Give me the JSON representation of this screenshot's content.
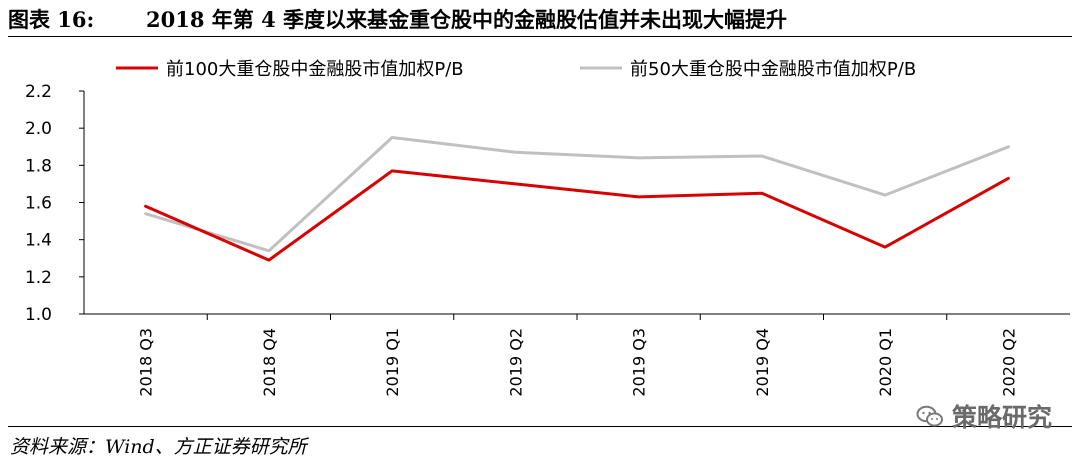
{
  "figure": {
    "label": "图表 16:",
    "title": "2018 年第 4 季度以来基金重仓股中的金融股估值并未出现大幅提升"
  },
  "source": "资料来源：Wind、方正证券研究所",
  "watermark": "策略研究",
  "watermark_icon": "wechat-icon",
  "chart_data": {
    "type": "line",
    "categories": [
      "2018  Q3",
      "2018  Q4",
      "2019  Q1",
      "2019  Q2",
      "2019  Q3",
      "2019  Q4",
      "2020  Q1",
      "2020  Q2"
    ],
    "series": [
      {
        "name": "前100大重仓股中金融股市值加权P/B",
        "color": "#d90000",
        "values": [
          1.58,
          1.29,
          1.77,
          1.7,
          1.63,
          1.65,
          1.36,
          1.73
        ]
      },
      {
        "name": "前50大重仓股中金融股市值加权P/B",
        "color": "#c0c0c0",
        "values": [
          1.54,
          1.34,
          1.95,
          1.87,
          1.84,
          1.85,
          1.64,
          1.9
        ]
      }
    ],
    "y_ticks": [
      "1.0",
      "1.2",
      "1.4",
      "1.6",
      "1.8",
      "2.0",
      "2.2"
    ],
    "ylim": [
      1.0,
      2.2
    ],
    "grid": false,
    "legend_position": "top"
  }
}
